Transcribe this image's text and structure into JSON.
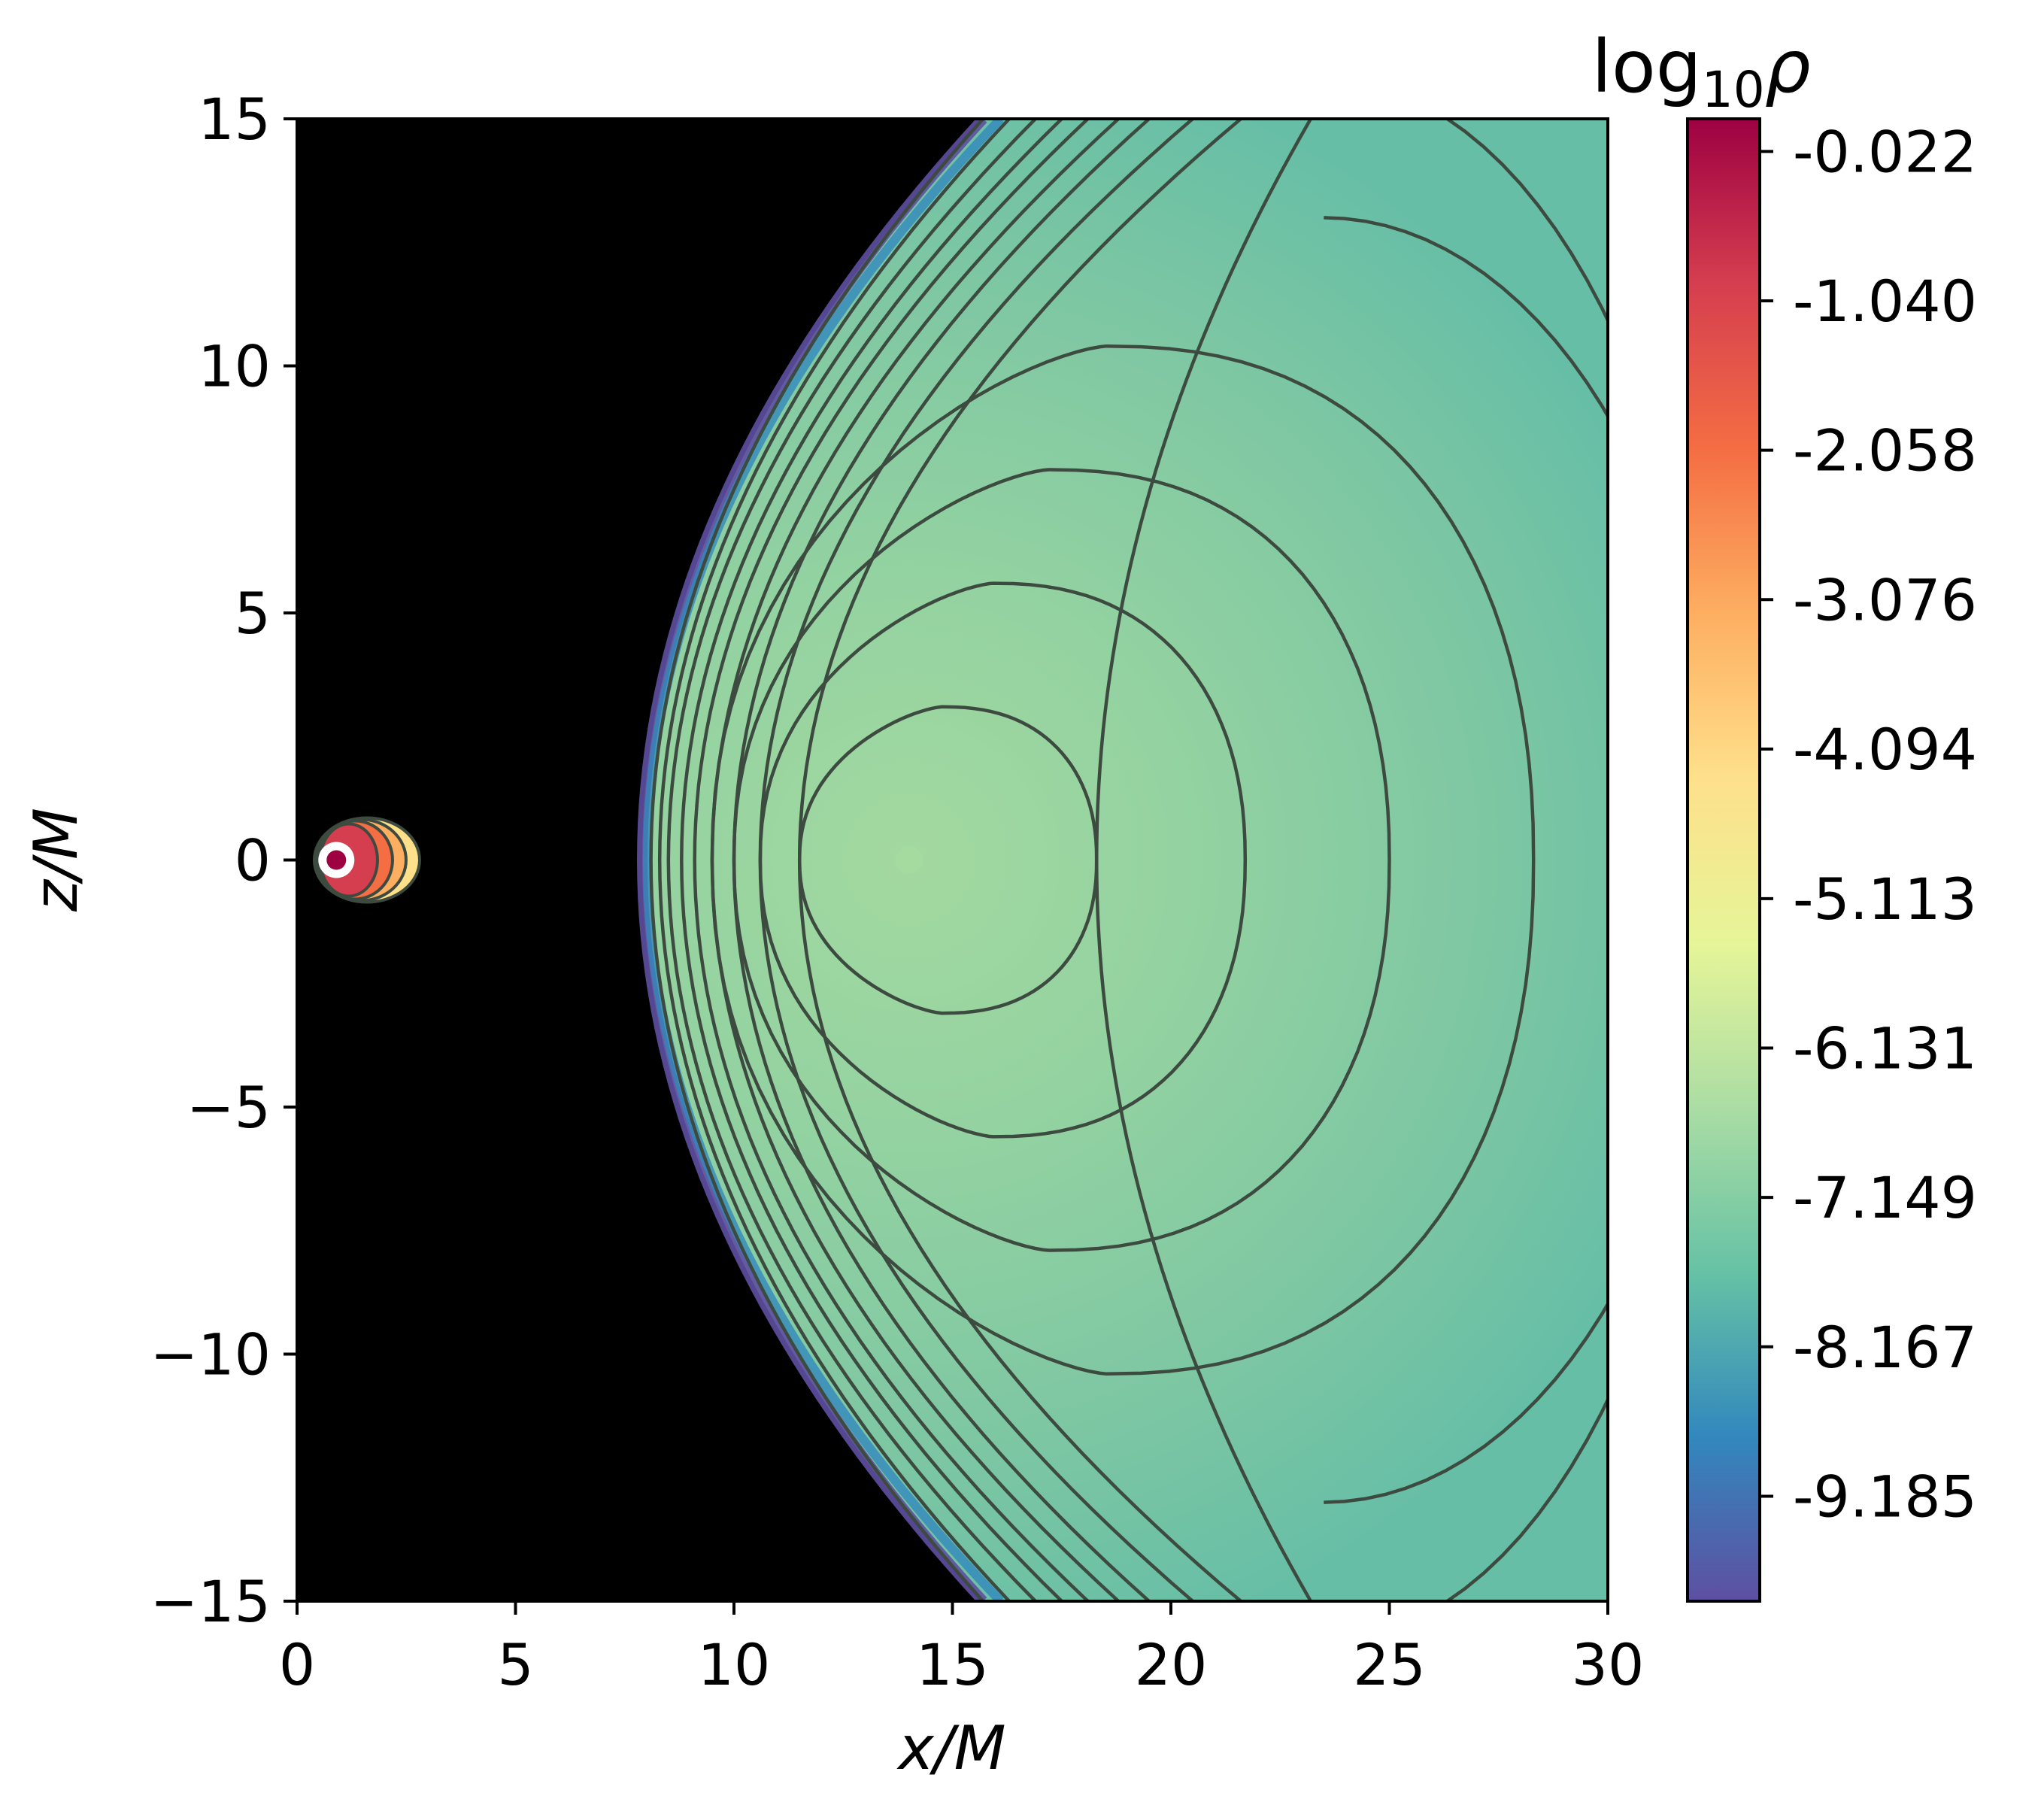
{
  "chart_data": {
    "type": "heatmap",
    "subtype": "filled contour plot (torus density)",
    "xlabel": "x/M",
    "ylabel": "z/M",
    "xlim": [
      0,
      30
    ],
    "ylim": [
      -15,
      15
    ],
    "x_ticks": [
      0,
      5,
      10,
      15,
      20,
      25,
      30
    ],
    "y_ticks": [
      {
        "value": 15,
        "label": "15"
      },
      {
        "value": 10,
        "label": "10"
      },
      {
        "value": 5,
        "label": "5"
      },
      {
        "value": 0,
        "label": "0"
      },
      {
        "value": -5,
        "label": "−5"
      },
      {
        "value": -10,
        "label": "−10"
      },
      {
        "value": -15,
        "label": "−15"
      }
    ],
    "colorbar": {
      "title_base": "log",
      "title_sub": "10",
      "title_sym": "ρ",
      "colormap": "Spectral_r",
      "range": [
        -9.9,
        0.2
      ],
      "ticks": [
        -0.022,
        -1.04,
        -2.058,
        -3.076,
        -4.094,
        -5.113,
        -6.131,
        -7.149,
        -8.167,
        -9.185
      ],
      "tick_labels": [
        "-0.022",
        "-1.040",
        "-2.058",
        "-3.076",
        "-4.094",
        "-5.113",
        "-6.131",
        "-7.149",
        "-8.167",
        "-9.185"
      ],
      "colors": [
        "#5e4fa2",
        "#3288bd",
        "#66c2a5",
        "#abdda4",
        "#e6f598",
        "#fee08b",
        "#fdae61",
        "#f46d43",
        "#d53e4f",
        "#9e0142"
      ]
    },
    "background_color": "#000000",
    "contour_line_color": "#3d4a40",
    "torus": {
      "inner_edge_x": 7.9,
      "density_max_x": 14.0,
      "max_log_rho": -7.3,
      "edge_log_rho": -9.9,
      "contour_crossings_x": [
        8.1,
        8.3,
        8.5,
        8.8,
        9.1,
        9.5,
        10.0,
        10.6,
        11.5,
        18.3,
        21.7,
        25.0,
        28.3
      ],
      "upper_edge_x": [
        15.7,
        16.3,
        16.9,
        17.5,
        18.1,
        18.8,
        19.5,
        20.5,
        21.6,
        23.2
      ]
    },
    "inner_blob": {
      "center_x": 1.6,
      "center_z": 0.0,
      "colors": [
        "#fee08b",
        "#fdae61",
        "#f46d43",
        "#d53e4f"
      ],
      "marker_x": 0.9,
      "marker_z": 0.0,
      "marker_color": "#9e0142"
    }
  }
}
